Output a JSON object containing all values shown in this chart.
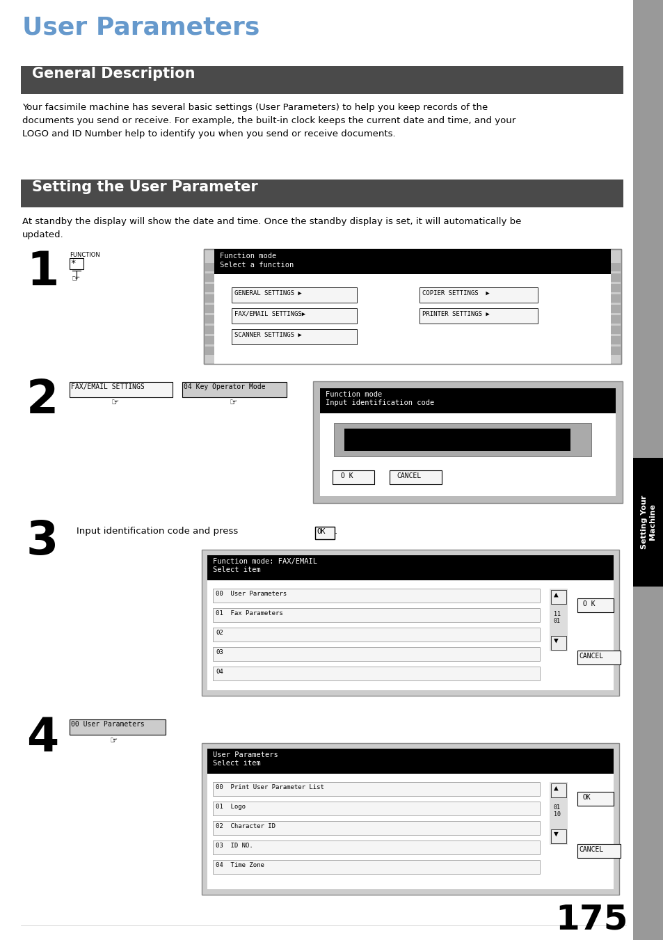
{
  "page_bg": "#ffffff",
  "title": "User Parameters",
  "title_color": "#6699cc",
  "title_fontsize": 26,
  "section1_title": "General Description",
  "section2_title": "Setting the User Parameter",
  "section_bg": "#4a4a4a",
  "section_text_color": "#ffffff",
  "general_desc_text": "Your facsimile machine has several basic settings (User Parameters) to help you keep records of the\ndocuments you send or receive. For example, the built-in clock keeps the current date and time, and your\nLOGO and ID Number help to identify you when you send or receive documents.",
  "setting_intro_text": "At standby the display will show the date and time. Once the standby display is set, it will automatically be\nupdated.",
  "sidebar_gray": "#999999",
  "sidebar_black_text": "Setting Your\nMachine",
  "page_number": "175"
}
